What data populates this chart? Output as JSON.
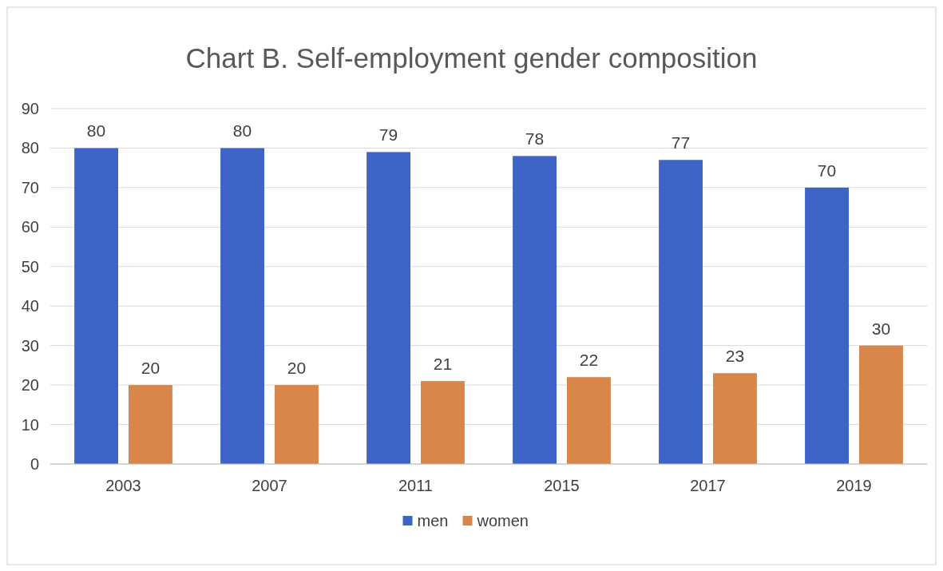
{
  "chart_data": {
    "type": "bar",
    "title": "Chart B. Self-employment gender composition",
    "categories": [
      "2003",
      "2007",
      "2011",
      "2015",
      "2017",
      "2019"
    ],
    "series": [
      {
        "name": "men",
        "color": "#3e64c8",
        "values": [
          80,
          80,
          79,
          78,
          77,
          70
        ]
      },
      {
        "name": "women",
        "color": "#d9864a",
        "values": [
          20,
          20,
          21,
          22,
          23,
          30
        ]
      }
    ],
    "ylim": [
      0,
      90
    ],
    "yticks": [
      0,
      10,
      20,
      30,
      40,
      50,
      60,
      70,
      80,
      90
    ],
    "grid": "y",
    "legend": "bottom",
    "data_labels": true
  }
}
